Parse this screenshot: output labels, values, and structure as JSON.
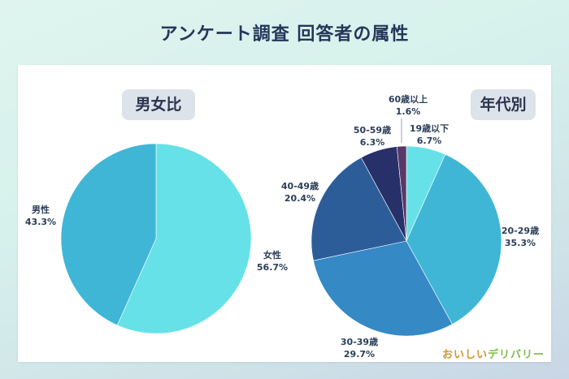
{
  "title": "アンケート調査 回答者の属性",
  "brand": {
    "part1": "おいしい",
    "part2": "デリバリー"
  },
  "colors": {
    "title": "#24375a",
    "label": "#2c3e5a"
  },
  "chart_data": [
    {
      "type": "pie",
      "title": "男女比",
      "categories": [
        "女性",
        "男性"
      ],
      "values": [
        56.7,
        43.3
      ],
      "labels": [
        "56.7%",
        "43.3%"
      ],
      "colors": [
        "#67e1e8",
        "#40b6d6"
      ]
    },
    {
      "type": "pie",
      "title": "年代別",
      "categories": [
        "19歳以下",
        "20-29歳",
        "30-39歳",
        "40-49歳",
        "50-59歳",
        "60歳以上"
      ],
      "values": [
        6.7,
        35.3,
        29.7,
        20.4,
        6.3,
        1.6
      ],
      "labels": [
        "6.7%",
        "35.3%",
        "29.7%",
        "20.4%",
        "6.3%",
        "1.6%"
      ],
      "colors": [
        "#67e1e8",
        "#40b6d6",
        "#3589c4",
        "#2d5d99",
        "#28306a",
        "#5a3766"
      ]
    }
  ]
}
